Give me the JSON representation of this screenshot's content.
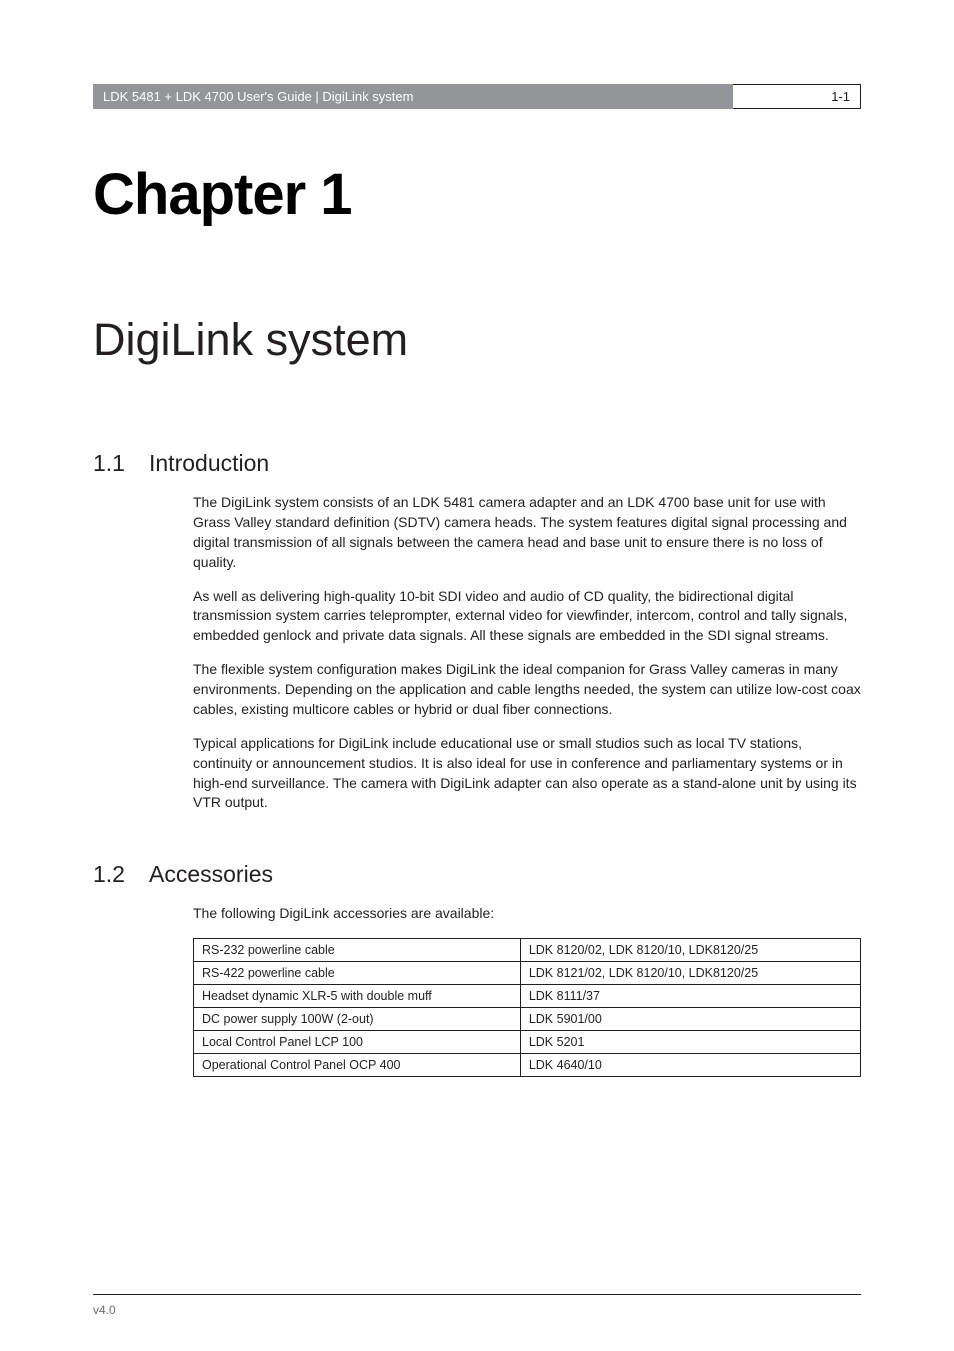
{
  "header": {
    "left": "LDK 5481 + LDK 4700 User's Guide | DigiLink system",
    "right": "1-1"
  },
  "chapter": {
    "number": "Chapter 1",
    "title": "DigiLink system"
  },
  "section1": {
    "num": "1.1",
    "title": "Introduction",
    "p1": "The DigiLink system consists of an LDK 5481 camera adapter and an LDK 4700 base unit for use with Grass Valley standard definition (SDTV) camera heads. The system features digital signal processing and digital transmission of all signals between the camera head and base unit to ensure there is no loss of quality.",
    "p2": "As well as delivering high-quality 10-bit SDI video and audio of CD quality, the bidirectional digital transmission system carries teleprompter, external video for viewfinder, intercom, control and tally signals, embedded genlock and private data signals. All these signals are embedded in the SDI signal streams.",
    "p3": "The flexible system configuration makes DigiLink the ideal companion for Grass Valley cameras in many environments. Depending on the application and cable lengths needed, the system can utilize low-cost coax cables, existing multicore cables or hybrid or dual fiber connections.",
    "p4": "Typical applications for DigiLink include educational use or small studios such as local TV stations, continuity or announcement studios. It is also ideal for use in conference and parliamentary systems or in high-end surveillance. The camera with DigiLink adapter can also operate as a stand-alone unit by using its VTR output."
  },
  "section2": {
    "num": "1.2",
    "title": "Accessories",
    "intro": "The following DigiLink accessories are available:",
    "rows": [
      [
        "RS-232 powerline cable",
        "LDK 8120/02, LDK 8120/10, LDK8120/25"
      ],
      [
        "RS-422 powerline cable",
        "LDK 8121/02, LDK 8120/10, LDK8120/25"
      ],
      [
        "Headset dynamic XLR-5 with double muff",
        "LDK 8111/37"
      ],
      [
        "DC power supply 100W (2-out)",
        "LDK 5901/00"
      ],
      [
        "Local Control Panel LCP 100",
        "LDK 5201"
      ],
      [
        "Operational Control Panel OCP 400",
        "LDK 4640/10"
      ]
    ]
  },
  "footer": {
    "version": "v4.0"
  },
  "style": {
    "page_bg": "#ffffff",
    "header_bg": "#939598",
    "header_text_color": "#ffffff",
    "border_color": "#231f20",
    "body_text_color": "#231f20",
    "footer_text_color": "#6d6e71",
    "chapter_num_fontsize": 58,
    "chapter_title_fontsize": 45,
    "section_head_fontsize": 23,
    "body_fontsize": 14,
    "table_fontsize": 12.5,
    "header_fontsize": 13,
    "footer_fontsize": 12
  }
}
